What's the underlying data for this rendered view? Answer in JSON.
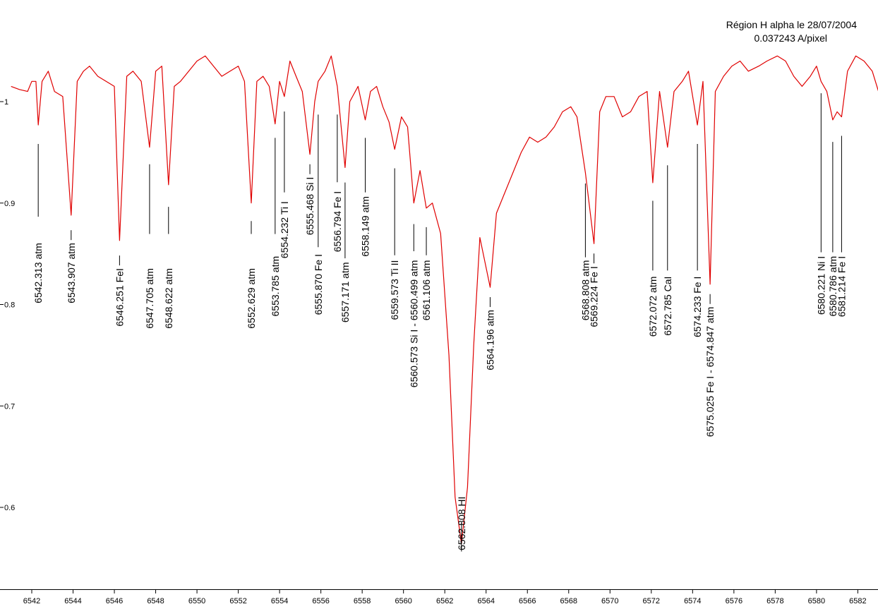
{
  "chart_data": {
    "type": "line",
    "title": "Région H alpha le 28/07/2004",
    "subtitle": "0.037243 A/pixel",
    "xlabel": "",
    "ylabel": "",
    "xlim": [
      6541.0,
      6583.0
    ],
    "ylim": [
      0.5,
      1.1
    ],
    "grid": false,
    "x_ticks": [
      6542,
      6544,
      6546,
      6548,
      6550,
      6552,
      6554,
      6556,
      6558,
      6560,
      6562,
      6564,
      6566,
      6568,
      6570,
      6572,
      6574,
      6576,
      6578,
      6580,
      6582
    ],
    "y_ticks": [
      0.6,
      0.7,
      0.8,
      0.9,
      1
    ],
    "series": [
      {
        "color": "#e00000",
        "points": [
          [
            6541.0,
            1.015
          ],
          [
            6541.4,
            1.012
          ],
          [
            6541.8,
            1.01
          ],
          [
            6542.0,
            1.02
          ],
          [
            6542.2,
            1.02
          ],
          [
            6542.313,
            0.977
          ],
          [
            6542.5,
            1.02
          ],
          [
            6542.8,
            1.03
          ],
          [
            6543.1,
            1.01
          ],
          [
            6543.5,
            1.005
          ],
          [
            6543.907,
            0.888
          ],
          [
            6544.2,
            1.02
          ],
          [
            6544.5,
            1.03
          ],
          [
            6544.8,
            1.035
          ],
          [
            6545.2,
            1.025
          ],
          [
            6545.6,
            1.02
          ],
          [
            6546.0,
            1.015
          ],
          [
            6546.251,
            0.863
          ],
          [
            6546.6,
            1.025
          ],
          [
            6546.9,
            1.03
          ],
          [
            6547.3,
            1.02
          ],
          [
            6547.705,
            0.955
          ],
          [
            6548.0,
            1.03
          ],
          [
            6548.3,
            1.035
          ],
          [
            6548.622,
            0.918
          ],
          [
            6548.9,
            1.015
          ],
          [
            6549.2,
            1.02
          ],
          [
            6549.6,
            1.03
          ],
          [
            6550.0,
            1.04
          ],
          [
            6550.4,
            1.045
          ],
          [
            6550.8,
            1.035
          ],
          [
            6551.2,
            1.025
          ],
          [
            6551.6,
            1.03
          ],
          [
            6552.0,
            1.035
          ],
          [
            6552.3,
            1.02
          ],
          [
            6552.629,
            0.9
          ],
          [
            6552.9,
            1.02
          ],
          [
            6553.2,
            1.025
          ],
          [
            6553.5,
            1.015
          ],
          [
            6553.785,
            0.978
          ],
          [
            6554.0,
            1.02
          ],
          [
            6554.232,
            1.005
          ],
          [
            6554.5,
            1.04
          ],
          [
            6554.8,
            1.025
          ],
          [
            6555.1,
            1.01
          ],
          [
            6555.468,
            0.948
          ],
          [
            6555.7,
            1.0
          ],
          [
            6555.87,
            1.02
          ],
          [
            6556.2,
            1.03
          ],
          [
            6556.5,
            1.045
          ],
          [
            6556.794,
            1.015
          ],
          [
            6557.171,
            0.935
          ],
          [
            6557.4,
            1.0
          ],
          [
            6557.8,
            1.015
          ],
          [
            6558.149,
            0.982
          ],
          [
            6558.4,
            1.01
          ],
          [
            6558.7,
            1.015
          ],
          [
            6559.0,
            0.995
          ],
          [
            6559.3,
            0.98
          ],
          [
            6559.573,
            0.953
          ],
          [
            6559.9,
            0.985
          ],
          [
            6560.2,
            0.975
          ],
          [
            6560.499,
            0.9
          ],
          [
            6560.8,
            0.932
          ],
          [
            6561.106,
            0.895
          ],
          [
            6561.4,
            0.9
          ],
          [
            6561.8,
            0.87
          ],
          [
            6562.2,
            0.75
          ],
          [
            6562.5,
            0.61
          ],
          [
            6562.808,
            0.564
          ],
          [
            6563.1,
            0.62
          ],
          [
            6563.4,
            0.76
          ],
          [
            6563.7,
            0.866
          ],
          [
            6564.196,
            0.817
          ],
          [
            6564.5,
            0.89
          ],
          [
            6564.9,
            0.91
          ],
          [
            6565.3,
            0.93
          ],
          [
            6565.7,
            0.95
          ],
          [
            6566.1,
            0.965
          ],
          [
            6566.5,
            0.96
          ],
          [
            6566.9,
            0.965
          ],
          [
            6567.3,
            0.975
          ],
          [
            6567.7,
            0.99
          ],
          [
            6568.1,
            0.995
          ],
          [
            6568.4,
            0.985
          ],
          [
            6568.808,
            0.93
          ],
          [
            6569.224,
            0.86
          ],
          [
            6569.5,
            0.99
          ],
          [
            6569.8,
            1.005
          ],
          [
            6570.2,
            1.005
          ],
          [
            6570.6,
            0.985
          ],
          [
            6571.0,
            0.99
          ],
          [
            6571.4,
            1.005
          ],
          [
            6571.8,
            1.01
          ],
          [
            6572.072,
            0.92
          ],
          [
            6572.4,
            1.01
          ],
          [
            6572.785,
            0.955
          ],
          [
            6573.1,
            1.01
          ],
          [
            6573.5,
            1.02
          ],
          [
            6573.8,
            1.03
          ],
          [
            6574.233,
            0.977
          ],
          [
            6574.5,
            1.02
          ],
          [
            6574.847,
            0.82
          ],
          [
            6575.1,
            1.01
          ],
          [
            6575.5,
            1.025
          ],
          [
            6575.9,
            1.035
          ],
          [
            6576.3,
            1.04
          ],
          [
            6576.7,
            1.03
          ],
          [
            6577.2,
            1.035
          ],
          [
            6577.6,
            1.04
          ],
          [
            6578.1,
            1.045
          ],
          [
            6578.5,
            1.04
          ],
          [
            6578.9,
            1.025
          ],
          [
            6579.3,
            1.015
          ],
          [
            6579.7,
            1.025
          ],
          [
            6580.0,
            1.035
          ],
          [
            6580.221,
            1.02
          ],
          [
            6580.5,
            1.01
          ],
          [
            6580.786,
            0.982
          ],
          [
            6581.0,
            0.99
          ],
          [
            6581.214,
            0.985
          ],
          [
            6581.5,
            1.03
          ],
          [
            6581.9,
            1.045
          ],
          [
            6582.3,
            1.04
          ],
          [
            6582.7,
            1.03
          ],
          [
            6583.0,
            1.01
          ]
        ]
      }
    ],
    "lines": [
      {
        "x": 6542.313,
        "y_top": 0.968,
        "y_bot": 0.906,
        "text_top": 0.883,
        "label": "6542.313  atm"
      },
      {
        "x": 6543.907,
        "y_top": 0.883,
        "y_bot": 0.883,
        "text_top": 0.883,
        "label": "6543.907  atm"
      },
      {
        "x": 6546.251,
        "y_top": 0.858,
        "y_bot": 0.858,
        "text_top": 0.858,
        "label": "6546.251  FeI"
      },
      {
        "x": 6547.705,
        "y_top": 0.948,
        "y_bot": 0.889,
        "text_top": 0.858,
        "label": "6547.705  atm"
      },
      {
        "x": 6548.622,
        "y_top": 0.906,
        "y_bot": 0.889,
        "text_top": 0.858,
        "label": "6548.622  atm"
      },
      {
        "x": 6552.629,
        "y_top": 0.892,
        "y_bot": 0.889,
        "text_top": 0.858,
        "label": "6552.629  atm"
      },
      {
        "x": 6553.785,
        "y_top": 0.974,
        "y_bot": 0.889,
        "text_top": 0.87,
        "label": "6553.785  atm"
      },
      {
        "x": 6554.232,
        "y_top": 1.0,
        "y_bot": 0.93,
        "text_top": 0.924,
        "label": "6554.232  Ti I"
      },
      {
        "x": 6555.468,
        "y_top": 0.948,
        "y_bot": 0.948,
        "text_top": 0.948,
        "label": "6555.468  Si I"
      },
      {
        "x": 6555.87,
        "y_top": 0.997,
        "y_bot": 0.876,
        "text_top": 0.872,
        "label": "6555.870  Fe I"
      },
      {
        "x": 6556.794,
        "y_top": 0.997,
        "y_bot": 0.94,
        "text_top": 0.934,
        "label": "6556.794  Fe I"
      },
      {
        "x": 6557.171,
        "y_top": 0.93,
        "y_bot": 0.865,
        "text_top": 0.864,
        "label": "6557.171  atm"
      },
      {
        "x": 6558.149,
        "y_top": 0.974,
        "y_bot": 0.93,
        "text_top": 0.929,
        "label": "6558.149  atm"
      },
      {
        "x": 6559.573,
        "y_top": 0.944,
        "y_bot": 0.868,
        "text_top": 0.866,
        "label": "6559.573  Ti II"
      },
      {
        "x": 6560.499,
        "y_top": 0.889,
        "y_bot": 0.872,
        "text_top": 0.866,
        "label": "6560.573  Si I - 6560.499  atm"
      },
      {
        "x": 6561.106,
        "y_top": 0.886,
        "y_bot": 0.868,
        "text_top": 0.866,
        "label": "6561.106  atm"
      },
      {
        "x": 6562.808,
        "y_top": 0.594,
        "y_bot": 0.576,
        "text_top": 0.633,
        "label": "6562.808  HI"
      },
      {
        "x": 6564.196,
        "y_top": 0.817,
        "y_bot": 0.817,
        "text_top": 0.817,
        "label": "6564.196  atm"
      },
      {
        "x": 6568.808,
        "y_top": 0.929,
        "y_bot": 0.866,
        "text_top": 0.866,
        "label": "6568.808  atm"
      },
      {
        "x": 6569.224,
        "y_top": 0.86,
        "y_bot": 0.86,
        "text_top": 0.86,
        "label": "6569.224  Fe I"
      },
      {
        "x": 6572.072,
        "y_top": 0.912,
        "y_bot": 0.853,
        "text_top": 0.85,
        "label": "6572.072  atm"
      },
      {
        "x": 6572.785,
        "y_top": 0.947,
        "y_bot": 0.853,
        "text_top": 0.85,
        "label": "6572.785  CaI"
      },
      {
        "x": 6574.233,
        "y_top": 0.968,
        "y_bot": 0.853,
        "text_top": 0.85,
        "label": "6574.233  Fe I"
      },
      {
        "x": 6574.847,
        "y_top": 0.82,
        "y_bot": 0.82,
        "text_top": 0.82,
        "label": "6575.025  Fe I - 6574.847  atm"
      },
      {
        "x": 6580.221,
        "y_top": 1.018,
        "y_bot": 0.871,
        "text_top": 0.87,
        "label": "6580.221  Ni I"
      },
      {
        "x": 6580.786,
        "y_top": 0.97,
        "y_bot": 0.871,
        "text_top": 0.87,
        "label": "6580.786  atm"
      },
      {
        "x": 6581.214,
        "y_top": 0.976,
        "y_bot": 0.871,
        "text_top": 0.87,
        "label": "6581.214  Fe I"
      }
    ]
  }
}
